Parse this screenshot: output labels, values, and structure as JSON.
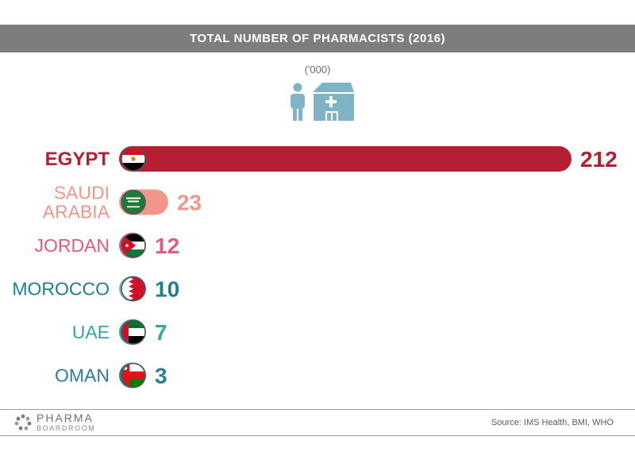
{
  "header": {
    "title": "TOTAL NUMBER OF PHARMACISTS (2016)"
  },
  "unit_label": "('000)",
  "chart_data": {
    "type": "bar",
    "orientation": "horizontal",
    "title": "TOTAL NUMBER OF PHARMACISTS (2016)",
    "unit": "('000)",
    "categories": [
      "EGYPT",
      "SAUDI ARABIA",
      "JORDAN",
      "MOROCCO",
      "UAE",
      "OMAN"
    ],
    "values": [
      212,
      23,
      12,
      10,
      7,
      3
    ],
    "series": [
      {
        "values": [
          212,
          23,
          12,
          10,
          7,
          3
        ]
      }
    ],
    "bar_colors": [
      "#b41f33",
      "#f2958a",
      "#e05d79",
      "#7bb3c4",
      "#34a3aa",
      "#2a7f94"
    ],
    "label_colors": [
      "#b41f33",
      "#f2958a",
      "#e05d79",
      "#1f7f8d",
      "#34a3aa",
      "#2a7f94"
    ],
    "flag_icons": [
      "egypt-flag-icon",
      "saudi-arabia-flag-icon",
      "jordan-flag-icon",
      "bahrain-flag-icon",
      "uae-flag-icon",
      "oman-flag-icon"
    ],
    "xlim": [
      0,
      212
    ],
    "grid": false,
    "legend": "none"
  },
  "footer": {
    "logo_main": "PHARMA",
    "logo_sub": "BOARDROOM",
    "source": "Source:  IMS Health, BMI, WHO"
  },
  "icons": {
    "hero": "pharmacist-pharmacy-icon",
    "logo": "pharmaboardroom-logo-icon"
  }
}
